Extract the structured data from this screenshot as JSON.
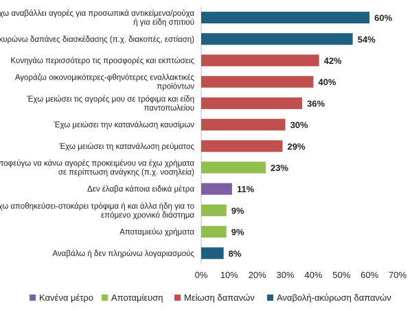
{
  "chart_data": {
    "type": "bar",
    "orientation": "horizontal",
    "title": "",
    "xlabel": "",
    "ylabel": "",
    "xlim": [
      0,
      70
    ],
    "x_ticks": [
      "0%",
      "10%",
      "20%",
      "30%",
      "40%",
      "50%",
      "60%",
      "70%"
    ],
    "grid": false,
    "legend_position": "bottom",
    "legend": [
      {
        "key": "none",
        "label": "Κανένα μέτρο",
        "color": "#7e5fa6"
      },
      {
        "key": "saving",
        "label": "Αποταμίευση",
        "color": "#92bd4f"
      },
      {
        "key": "reduce",
        "label": "Μείωση δαπανών",
        "color": "#c0504d"
      },
      {
        "key": "defer",
        "label": "Αναβολή-ακύρωση δαπανών",
        "color": "#1f5f7f"
      }
    ],
    "items": [
      {
        "label": [
          "Έχω αναβάλλει αγορές για προσωπικά αντικείμενα/ρούχα",
          "ή για είδη σπιτιού"
        ],
        "value": 60,
        "value_label": "60%",
        "group": "defer"
      },
      {
        "label": [
          "Ακυρώνω δαπάνες διασκέδασης (π.χ. διακοπές, εστίαση)"
        ],
        "value": 54,
        "value_label": "54%",
        "group": "defer"
      },
      {
        "label": [
          "Κυνηγάω περισσότερο τις προσφορές και εκπτώσεις"
        ],
        "value": 42,
        "value_label": "42%",
        "group": "reduce"
      },
      {
        "label": [
          "Αγοράζω οικονομικότερες-φθηνότερες εναλλακτικές",
          "προϊόντων"
        ],
        "value": 40,
        "value_label": "40%",
        "group": "reduce"
      },
      {
        "label": [
          "Έχω μειώσει τις αγορές μου σε τρόφιμα και είδη",
          "παντοπωλείου"
        ],
        "value": 36,
        "value_label": "36%",
        "group": "reduce"
      },
      {
        "label": [
          "Έχω μειώσει την κατανάλωση καυσίμων"
        ],
        "value": 30,
        "value_label": "30%",
        "group": "reduce"
      },
      {
        "label": [
          "Έχω μειώσει τη κατανάλωση ρεύματος"
        ],
        "value": 29,
        "value_label": "29%",
        "group": "reduce"
      },
      {
        "label": [
          "Αποφεύγω να κάνω αγορές προκειμένου να έχω χρήματα",
          "σε περίπτωση ανάγκης (π.χ. νοσηλεία)"
        ],
        "value": 23,
        "value_label": "23%",
        "group": "saving"
      },
      {
        "label": [
          "Δεν έλαβα κάποια ειδικά μέτρα"
        ],
        "value": 11,
        "value_label": "11%",
        "group": "none"
      },
      {
        "label": [
          "Έχω αποθηκεύσει-στοκάρει τρόφιμα ή και άλλα ήδη για το",
          "επόμενο χρονικό διάστημα"
        ],
        "value": 9,
        "value_label": "9%",
        "group": "saving"
      },
      {
        "label": [
          "Αποταμιεύω χρήματα"
        ],
        "value": 9,
        "value_label": "9%",
        "group": "saving"
      },
      {
        "label": [
          "Αναβάλω ή δεν πληρώνω λογαριασμούς"
        ],
        "value": 8,
        "value_label": "8%",
        "group": "defer"
      }
    ]
  }
}
